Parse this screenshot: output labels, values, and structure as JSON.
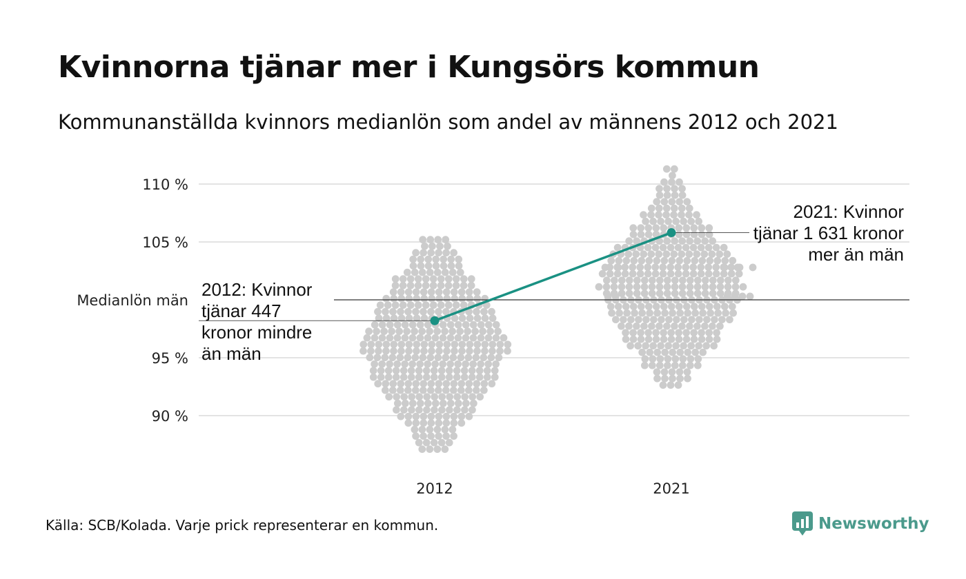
{
  "title": "Kvinnorna tjänar mer i Kungsörs kommun",
  "subtitle": "Kommunanställda kvinnors medianlön som andel av männens 2012 och 2021",
  "source": "Källa: SCB/Kolada. Varje prick representerar en kommun.",
  "brand": "Newsworthy",
  "colors": {
    "dots": "#cccccc",
    "highlight": "#1a9183",
    "grid": "#e3e3e3",
    "reference": "#333333"
  },
  "chart_data": {
    "type": "scatter",
    "categories": [
      "2012",
      "2021"
    ],
    "yticks": [
      {
        "value": 110,
        "label": "110 %"
      },
      {
        "value": 105,
        "label": "105 %"
      },
      {
        "value": 100,
        "label": "Medianlön män"
      },
      {
        "value": 95,
        "label": "95 %"
      },
      {
        "value": 90,
        "label": "90 %"
      }
    ],
    "ylim": [
      86,
      111.5
    ],
    "highlight": {
      "2012": 98.2,
      "2021": 105.8
    },
    "distribution": {
      "2012": {
        "min": 86.6,
        "max": 105.2,
        "center": 96.0
      },
      "2021": {
        "min": 92.6,
        "max": 111.3,
        "center": 101.0
      }
    },
    "annotations": [
      {
        "category": "2012",
        "lines": [
          "2012: Kvinnor",
          "tjänar 447",
          "kronor mindre",
          "än män"
        ]
      },
      {
        "category": "2021",
        "lines": [
          "2021: Kvinnor",
          "tjänar 1 631 kronor",
          "mer än män"
        ]
      }
    ]
  }
}
